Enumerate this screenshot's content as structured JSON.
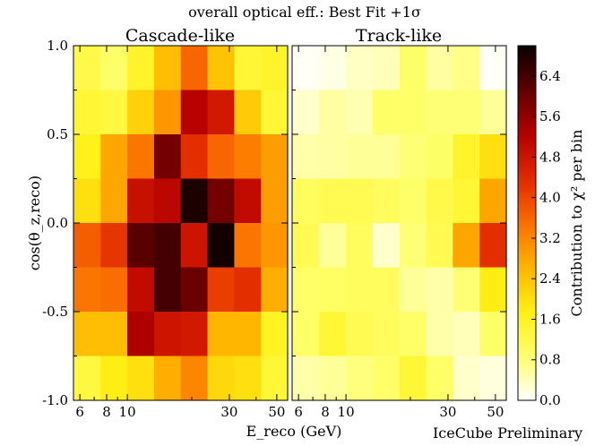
{
  "chart_data": {
    "type": "heatmap",
    "title": "overall optical eff.: Best Fit  +1σ",
    "watermark": "IceCube Preliminary",
    "ylabel": "cos(θ_z,reco)",
    "xlabel": "E_reco (GeV)",
    "ylim": [
      -1.0,
      1.0
    ],
    "xscale": "log",
    "xlim": [
      5.6,
      56.2
    ],
    "x_bin_edges": [
      5.62,
      7.5,
      10.0,
      13.34,
      17.78,
      23.71,
      31.62,
      42.17,
      56.23
    ],
    "y_bin_edges": [
      1.0,
      0.75,
      0.5,
      0.25,
      0.0,
      -0.25,
      -0.5,
      -0.75,
      -1.0
    ],
    "y_ticks": [
      "1.0",
      "0.5",
      "0.0",
      "-0.5",
      "-1.0"
    ],
    "y_tick_values": [
      1.0,
      0.5,
      0.0,
      -0.5,
      -1.0
    ],
    "x_ticks": [
      "6",
      "8",
      "10",
      "30",
      "50"
    ],
    "x_tick_values": [
      6,
      8,
      10,
      30,
      50
    ],
    "x_minor_tick_values": [
      7,
      9,
      20,
      40
    ],
    "colorbar": {
      "label": "Contribution to χ² per bin",
      "range": [
        0.0,
        7.0
      ],
      "ticks": [
        "0.0",
        "0.8",
        "1.6",
        "2.4",
        "3.2",
        "4.0",
        "4.8",
        "5.6",
        "6.4"
      ],
      "tick_values": [
        0.0,
        0.8,
        1.6,
        2.4,
        3.2,
        4.0,
        4.8,
        5.6,
        6.4
      ]
    },
    "panels": [
      {
        "name": "Cascade-like",
        "values": [
          [
            1.2,
            0.9,
            1.5,
            2.5,
            3.6,
            2.4,
            1.4,
            1.5
          ],
          [
            1.4,
            1.3,
            2.2,
            3.0,
            5.2,
            4.7,
            2.3,
            1.4
          ],
          [
            1.7,
            2.8,
            3.4,
            5.9,
            4.3,
            3.6,
            3.3,
            2.9
          ],
          [
            2.0,
            2.8,
            4.9,
            5.1,
            6.8,
            5.9,
            5.0,
            2.9
          ],
          [
            3.7,
            4.2,
            6.2,
            6.4,
            4.8,
            6.9,
            3.4,
            3.0
          ],
          [
            3.4,
            3.5,
            5.0,
            6.4,
            6.0,
            4.1,
            4.3,
            2.7
          ],
          [
            2.5,
            2.5,
            5.3,
            4.8,
            4.7,
            2.6,
            2.6,
            1.6
          ],
          [
            1.3,
            1.8,
            2.0,
            2.7,
            3.2,
            2.1,
            2.0,
            1.4
          ]
        ]
      },
      {
        "name": "Track-like",
        "values": [
          [
            0.05,
            0.15,
            0.35,
            0.4,
            0.9,
            0.55,
            0.7,
            0.05
          ],
          [
            0.3,
            0.55,
            0.45,
            0.9,
            0.9,
            0.8,
            0.8,
            0.6
          ],
          [
            0.5,
            0.55,
            0.6,
            0.6,
            0.8,
            0.9,
            1.5,
            2.0
          ],
          [
            1.0,
            1.1,
            1.1,
            1.0,
            0.9,
            1.2,
            1.4,
            2.8
          ],
          [
            1.1,
            0.6,
            1.0,
            0.3,
            0.8,
            1.1,
            2.8,
            4.3
          ],
          [
            0.9,
            0.95,
            1.0,
            1.0,
            0.6,
            0.5,
            0.8,
            1.8
          ],
          [
            0.9,
            1.4,
            1.1,
            1.0,
            0.9,
            0.5,
            0.4,
            0.9
          ],
          [
            0.5,
            0.6,
            0.75,
            0.9,
            1.4,
            0.9,
            0.3,
            0.2
          ]
        ]
      }
    ]
  }
}
